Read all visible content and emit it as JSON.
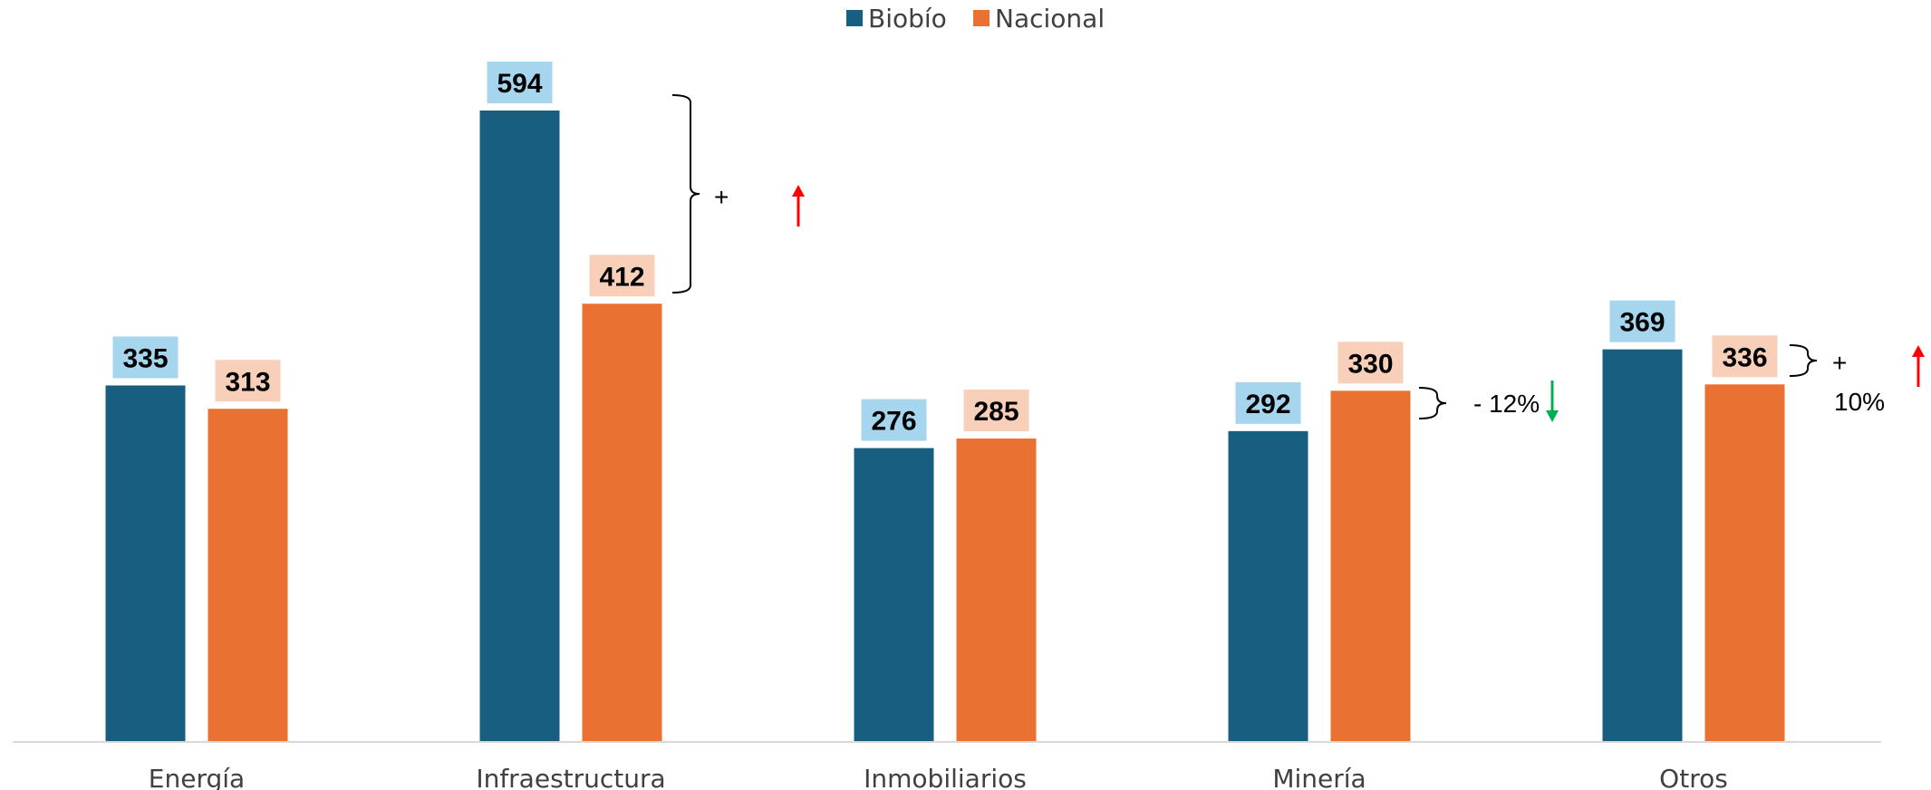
{
  "chart_data": {
    "type": "bar",
    "categories": [
      "Energía",
      "Infraestructura",
      "Inmobiliarios",
      "Minería",
      "Otros"
    ],
    "series": [
      {
        "name": "Biobío",
        "values": [
          335,
          594,
          276,
          292,
          369
        ]
      },
      {
        "name": "Nacional",
        "values": [
          313,
          412,
          285,
          330,
          336
        ]
      }
    ],
    "ylim": [
      0,
      640
    ],
    "grid": false,
    "legend_position": "top-center",
    "annotations": [
      {
        "category": "Infraestructura",
        "text": "+",
        "direction": "up"
      },
      {
        "category": "Minería",
        "text": "- 12%",
        "direction": "down"
      },
      {
        "category": "Otros",
        "text": "+",
        "text2": "10%",
        "direction": "up"
      }
    ]
  },
  "colors": {
    "series": [
      "#175E80",
      "#E97132"
    ],
    "label_bg": [
      "#A6D5EE",
      "#F8CFB9"
    ],
    "axis": "#D9D9D9",
    "arrow_up": "#FF0000",
    "arrow_down": "#00B050"
  }
}
